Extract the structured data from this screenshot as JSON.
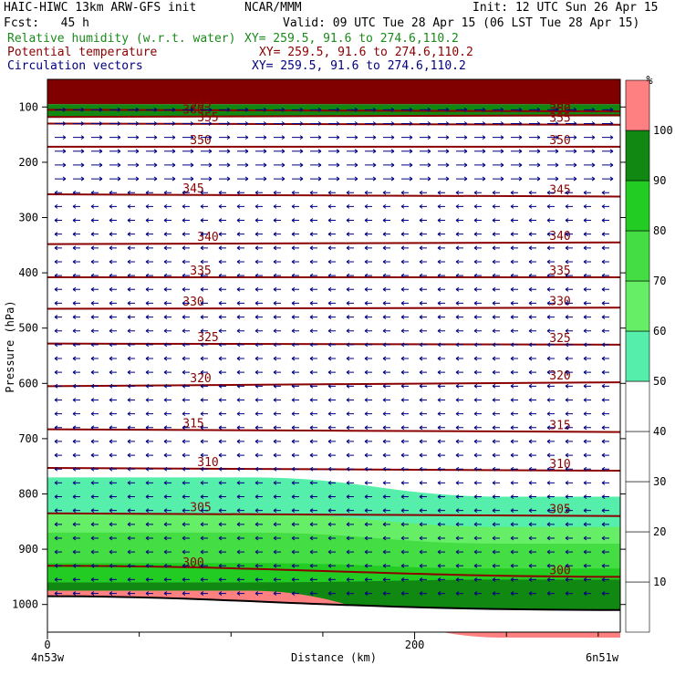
{
  "header": {
    "model": "HAIC-HIWC 13km ARW-GFS init",
    "org": "NCAR/MMM",
    "init": "Init: 12 UTC Sun 26 Apr 15",
    "fcst": "Fcst:   45 h",
    "valid": "Valid: 09 UTC Tue 28 Apr 15 (06 LST Tue 28 Apr 15)",
    "field1": {
      "name": "Relative humidity (w.r.t. water)",
      "xy": "XY= 259.5, 91.6 to 274.6,110.2",
      "color": "#1a8a1a"
    },
    "field2": {
      "name": "Potential temperature",
      "xy": "XY= 259.5, 91.6 to 274.6,110.2",
      "color": "#8b0000"
    },
    "field3": {
      "name": "Circulation vectors",
      "xy": "XY= 259.5, 91.6 to 274.6,110.2",
      "color": "#000080"
    }
  },
  "chart_data": {
    "type": "heatmap",
    "title": "",
    "xlabel": "Distance (km)",
    "ylabel": "Pressure (hPa)",
    "x_ticks": [
      "0",
      "200"
    ],
    "x_start_label": "4n53w",
    "x_end_label": "6n51w",
    "xlim": [
      0,
      312
    ],
    "y_ticks": [
      "100",
      "200",
      "300",
      "400",
      "500",
      "600",
      "700",
      "800",
      "900",
      "1000"
    ],
    "ylim": [
      1050,
      50
    ],
    "colorbar": {
      "unit": "%",
      "levels": [
        "10",
        "20",
        "30",
        "40",
        "50",
        "60",
        "70",
        "80",
        "90",
        "100"
      ],
      "bins": [
        {
          "range": [
            50,
            60
          ],
          "color": "#55eeaa"
        },
        {
          "range": [
            60,
            70
          ],
          "color": "#66ee66"
        },
        {
          "range": [
            70,
            80
          ],
          "color": "#44dd44"
        },
        {
          "range": [
            80,
            90
          ],
          "color": "#22cc22"
        },
        {
          "range": [
            90,
            100
          ],
          "color": "#118811"
        },
        {
          "range": [
            100,
            110
          ],
          "color": "#ff8080"
        }
      ]
    },
    "theta_contours": [
      {
        "label": "300",
        "p_left": 930,
        "p_right": 950
      },
      {
        "label": "305",
        "p_left": 835,
        "p_right": 840
      },
      {
        "label": "310",
        "p_left": 753,
        "p_right": 758
      },
      {
        "label": "315",
        "p_left": 683,
        "p_right": 688
      },
      {
        "label": "320",
        "p_left": 605,
        "p_right": 598
      },
      {
        "label": "325",
        "p_left": 528,
        "p_right": 530
      },
      {
        "label": "330",
        "p_left": 465,
        "p_right": 463
      },
      {
        "label": "335",
        "p_left": 408,
        "p_right": 408
      },
      {
        "label": "340",
        "p_left": 348,
        "p_right": 345
      },
      {
        "label": "345",
        "p_left": 258,
        "p_right": 262
      },
      {
        "label": "350",
        "p_left": 172,
        "p_right": 172
      },
      {
        "label": "355",
        "p_left": 130,
        "p_right": 132
      },
      {
        "label": "360",
        "p_left": 118,
        "p_right": 115
      },
      {
        "label": "365",
        "p_left": 105,
        "p_right": 108
      }
    ],
    "rh_regions": [
      {
        "rh": 55,
        "p_top_left": 770,
        "p_top_right": 805
      },
      {
        "rh": 65,
        "p_top_left": 835,
        "p_top_right": 860
      },
      {
        "rh": 75,
        "p_top_left": 870,
        "p_top_right": 890
      },
      {
        "rh": 85,
        "p_top_left": 925,
        "p_top_right": 935
      },
      {
        "rh": 95,
        "p_top_left": 960,
        "p_top_right": 955
      },
      {
        "rh": 105,
        "p_top_left": 975,
        "p_top_right": 1060
      }
    ],
    "upper_band_rh": 95,
    "upper_band_p": [
      50,
      95
    ],
    "surface_p_left": 985,
    "surface_p_right": 1010,
    "vector_regime": [
      {
        "p_range": [
          100,
          250
        ],
        "direction": "east"
      },
      {
        "p_range": [
          250,
          1000
        ],
        "direction": "west"
      }
    ]
  }
}
